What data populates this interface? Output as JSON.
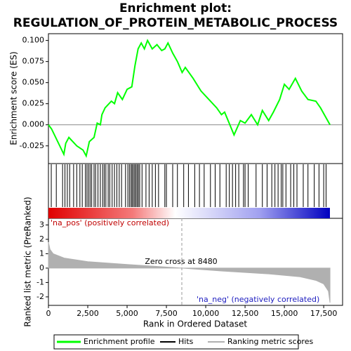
{
  "chart_data": {
    "type": "line",
    "title": [
      "Enrichment plot:",
      "REGULATION_OF_PROTEIN_METABOLIC_PROCESS"
    ],
    "ylabel": "Enrichment score (ES)",
    "xlabel": "Rank in Ordered Dataset",
    "xlim": [
      0,
      18700
    ],
    "xticks": [
      0,
      {
        "value": 2500,
        "label": "2,500"
      },
      {
        "value": 5000,
        "label": "5,000"
      },
      {
        "value": 7500,
        "label": "7,500"
      },
      {
        "value": 10000,
        "label": "10,000"
      },
      {
        "value": 12500,
        "label": "12,500"
      },
      {
        "value": 15000,
        "label": "15,000"
      },
      {
        "value": 17500,
        "label": "17,500"
      }
    ],
    "ylim": [
      -0.046,
      0.108
    ],
    "yticks": [
      {
        "value": 0.1,
        "label": "0.100"
      },
      {
        "value": 0.075,
        "label": "0.075"
      },
      {
        "value": 0.05,
        "label": "0.050"
      },
      {
        "value": 0.025,
        "label": "0.025"
      },
      {
        "value": 0,
        "label": "0.000"
      },
      {
        "value": -0.025,
        "label": "-0.025"
      }
    ],
    "series": [
      {
        "name": "Enrichment profile",
        "color": "#00ff00",
        "x": [
          0,
          200,
          980,
          1100,
          1300,
          1800,
          2200,
          2400,
          2600,
          2900,
          3100,
          3300,
          3400,
          3600,
          4000,
          4200,
          4400,
          4700,
          5000,
          5300,
          5500,
          5700,
          5900,
          6100,
          6300,
          6600,
          6900,
          7200,
          7400,
          7600,
          7900,
          8200,
          8500,
          8700,
          9200,
          9700,
          10200,
          10700,
          11000,
          11200,
          11800,
          12200,
          12500,
          12900,
          13300,
          13600,
          14000,
          14300,
          14700,
          15000,
          15300,
          15700,
          16100,
          16500,
          17000,
          17300,
          17600,
          17900
        ],
        "values": [
          0,
          -0.005,
          -0.035,
          -0.022,
          -0.015,
          -0.025,
          -0.03,
          -0.037,
          -0.02,
          -0.015,
          0.002,
          0,
          0.012,
          0.02,
          0.028,
          0.025,
          0.038,
          0.03,
          0.042,
          0.045,
          0.07,
          0.09,
          0.097,
          0.09,
          0.1,
          0.09,
          0.095,
          0.088,
          0.09,
          0.097,
          0.085,
          0.075,
          0.062,
          0.068,
          0.055,
          0.04,
          0.03,
          0.02,
          0.012,
          0.015,
          -0.012,
          0.005,
          0.002,
          0.012,
          0,
          0.017,
          0.005,
          0.015,
          0.03,
          0.048,
          0.042,
          0.055,
          0.04,
          0.03,
          0.028,
          0.02,
          0.01,
          0
        ]
      }
    ],
    "hits_name": "Hits",
    "hits": [
      180,
      500,
      900,
      1050,
      1200,
      1350,
      1600,
      1800,
      2000,
      2150,
      2350,
      2450,
      2550,
      2650,
      2750,
      2900,
      3000,
      3150,
      3300,
      3450,
      3550,
      3650,
      3800,
      3900,
      4050,
      4200,
      4350,
      4500,
      4650,
      4900,
      5050,
      5150,
      5250,
      5320,
      5400,
      5480,
      5560,
      5640,
      5720,
      5800,
      5950,
      6200,
      6400,
      6600,
      6800,
      7000,
      7400,
      7500,
      7900,
      8200,
      8600,
      8900,
      9300,
      9600,
      9900,
      10300,
      10600,
      10900,
      11300,
      11500,
      11700,
      11900,
      12100,
      12400,
      12500,
      12700,
      13200,
      13600,
      13900,
      14200,
      14400,
      14600,
      14800,
      14900,
      15100,
      15400,
      15600,
      15800,
      16200,
      16500,
      16900,
      17200,
      17500,
      17650
    ],
    "metric": {
      "name": "Ranking metric scores",
      "ylabel": "Ranked list metric (PreRanked)",
      "color": "#b0b0b0",
      "ylim": [
        -2.59,
        3.46
      ],
      "yticks": [
        3,
        2,
        1,
        0,
        -1,
        -2
      ],
      "x": [
        0,
        100,
        300,
        1000,
        2500,
        5000,
        8480,
        11000,
        14000,
        16000,
        17000,
        17500,
        17800,
        17900
      ],
      "values": [
        1.8,
        1.3,
        1.0,
        0.7,
        0.45,
        0.25,
        0,
        -0.2,
        -0.4,
        -0.6,
        -0.85,
        -1.1,
        -1.6,
        -2.4
      ]
    },
    "zero_cross": 8480,
    "annotations": [
      "'na_pos' (positively correlated)",
      "Zero cross at 8480",
      "'na_neg' (negatively correlated)"
    ]
  }
}
